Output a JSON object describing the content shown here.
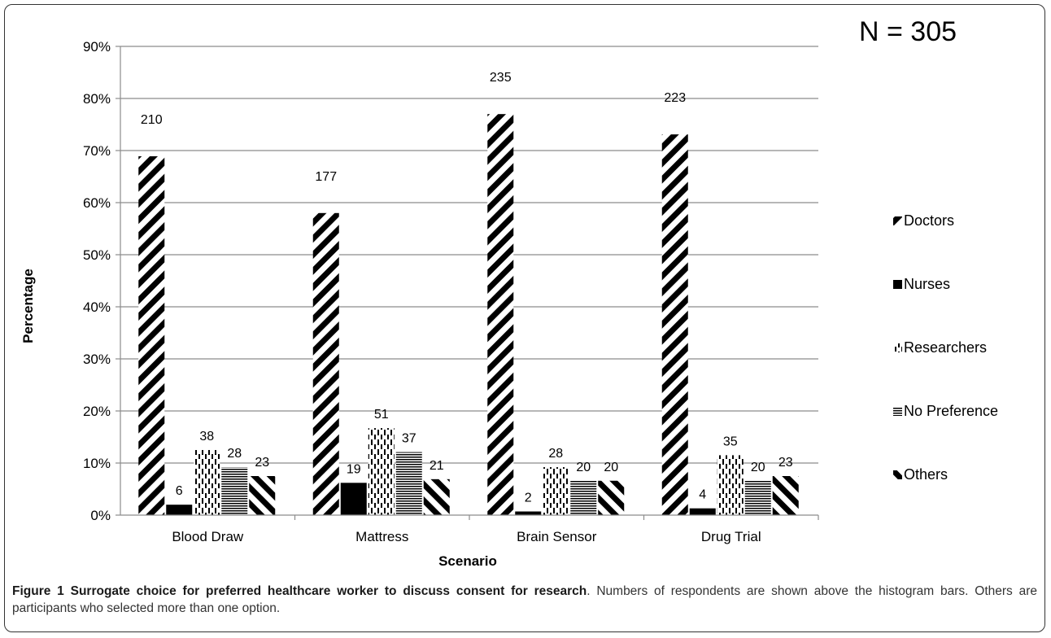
{
  "n_label": "N = 305",
  "caption": {
    "title": "Figure 1 Surrogate choice for preferred healthcare worker to discuss consent for research",
    "text": ". Numbers of respondents are shown above the histogram bars. Others are participants who selected more than one option."
  },
  "chart_data": {
    "type": "bar",
    "title": "",
    "xlabel": "Scenario",
    "ylabel": "Percentage",
    "ylim": [
      0,
      90
    ],
    "yticks": [
      "0%",
      "10%",
      "20%",
      "30%",
      "40%",
      "50%",
      "60%",
      "70%",
      "80%",
      "90%"
    ],
    "grid": true,
    "legend_position": "right",
    "categories": [
      "Blood Draw",
      "Mattress",
      "Brain Sensor",
      "Drug Trial"
    ],
    "series": [
      {
        "name": "Doctors",
        "pattern": "diagonal-up",
        "values": [
          68.9,
          58.0,
          77.0,
          73.1
        ],
        "counts": [
          "210",
          "177",
          "235",
          "223"
        ]
      },
      {
        "name": "Nurses",
        "pattern": "solid",
        "values": [
          2.0,
          6.2,
          0.7,
          1.3
        ],
        "counts": [
          "6",
          "19",
          "2",
          "4"
        ]
      },
      {
        "name": "Researchers",
        "pattern": "dashed-vertical",
        "values": [
          12.5,
          16.7,
          9.2,
          11.5
        ],
        "counts": [
          "38",
          "51",
          "28",
          "35"
        ]
      },
      {
        "name": "No Preference",
        "pattern": "horizontal",
        "values": [
          9.2,
          12.1,
          6.6,
          6.6
        ],
        "counts": [
          "28",
          "37",
          "20",
          "20"
        ]
      },
      {
        "name": "Others",
        "pattern": "diagonal-down",
        "values": [
          7.5,
          6.9,
          6.6,
          7.5
        ],
        "counts": [
          "23",
          "21",
          "20",
          "23"
        ]
      }
    ]
  }
}
